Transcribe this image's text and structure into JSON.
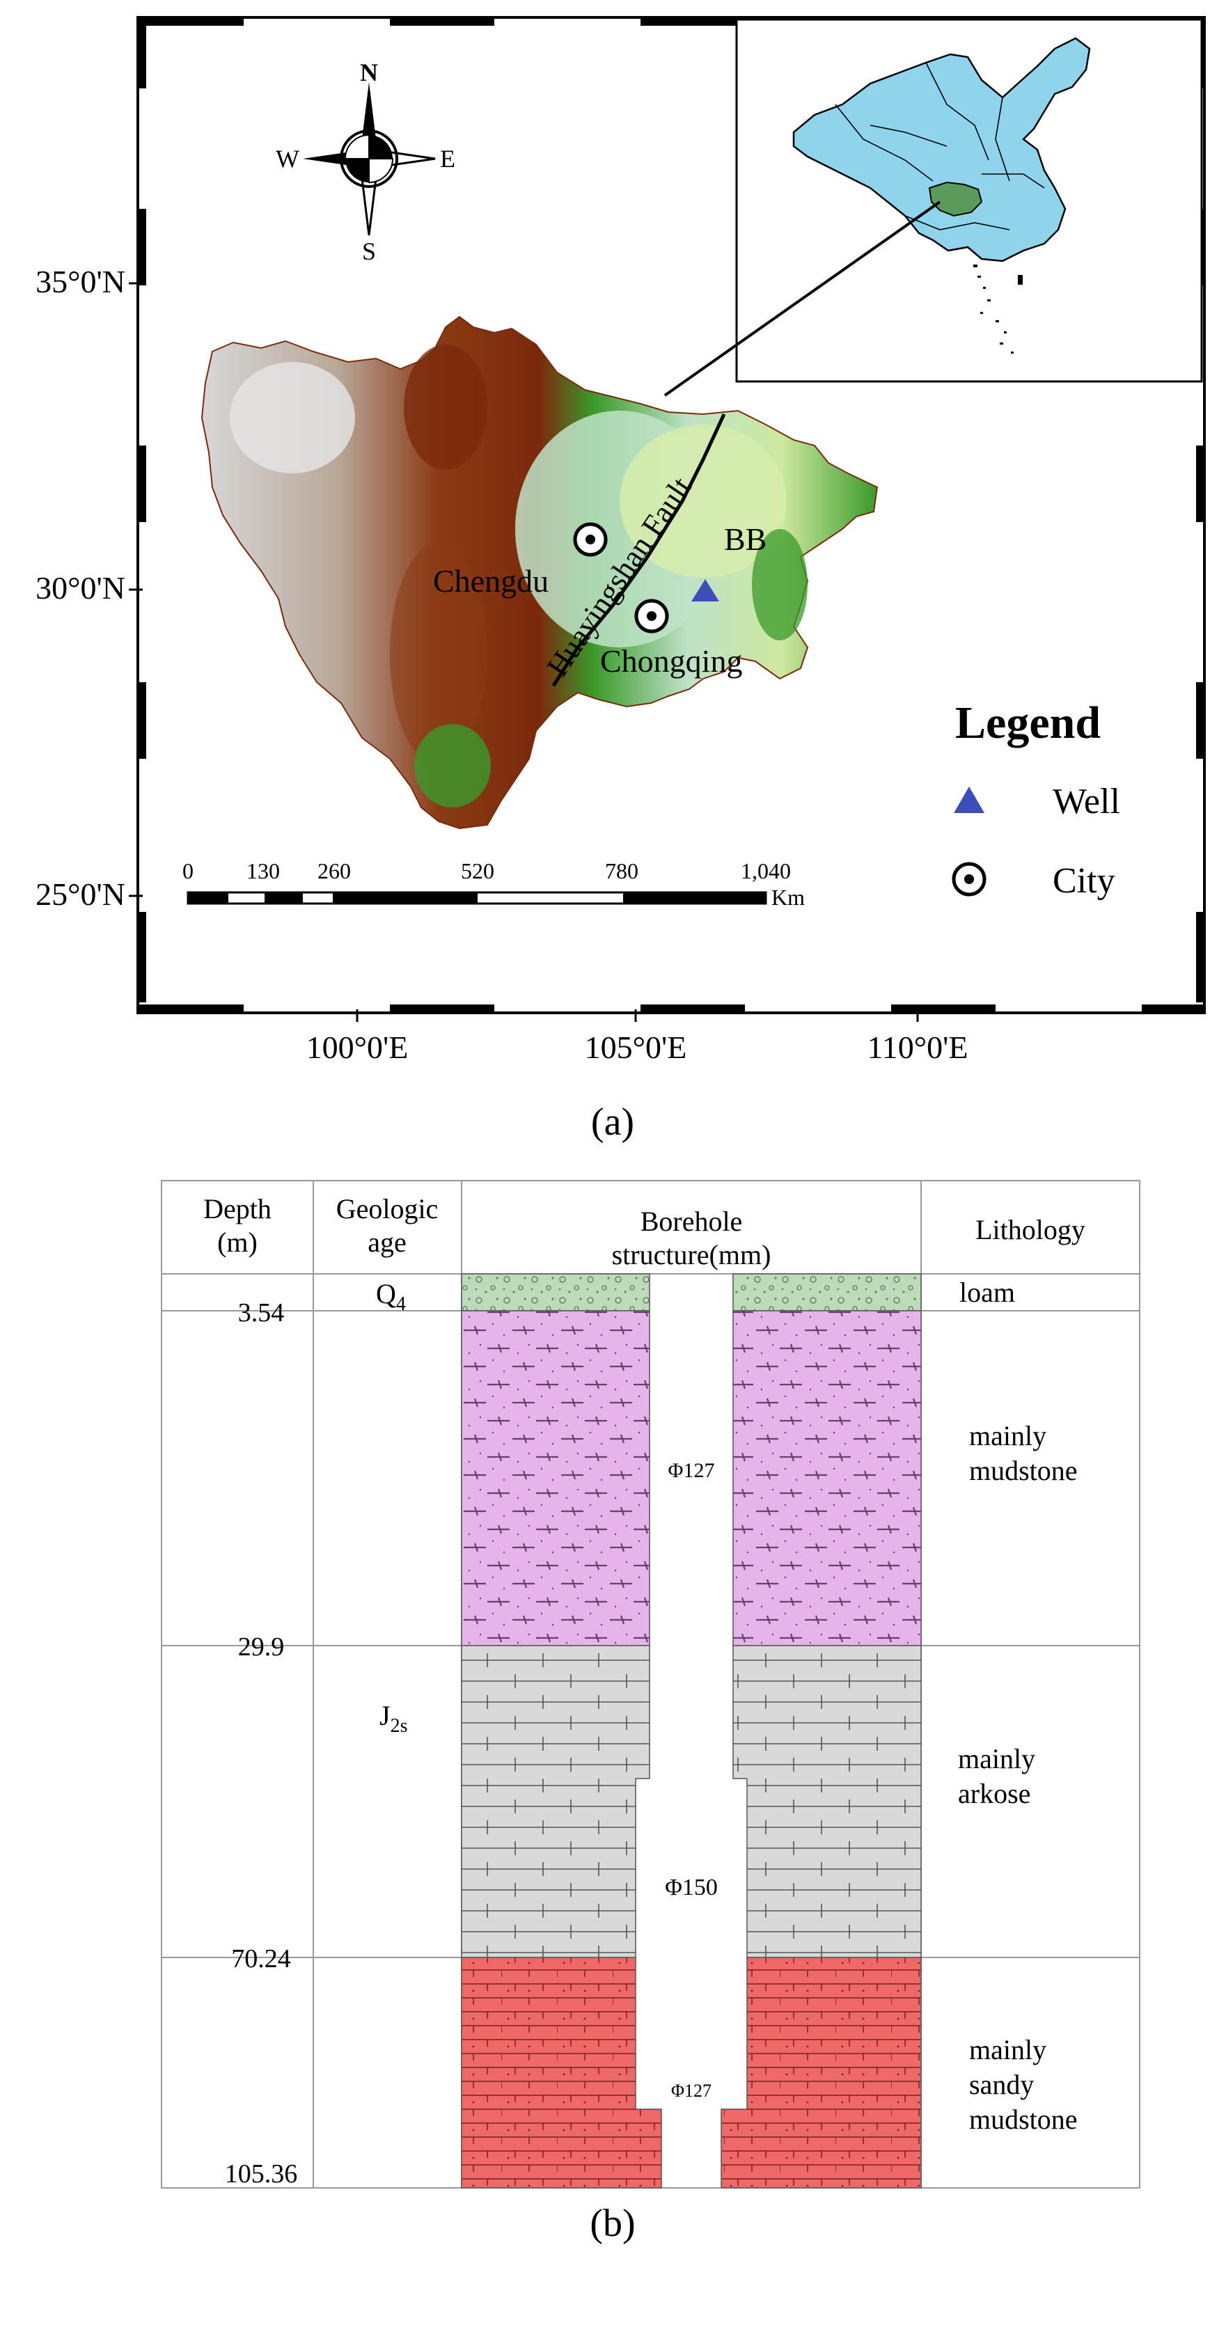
{
  "panel_a": {
    "caption": "(a)",
    "lat_labels": [
      "35°0'N",
      "30°0'N",
      "25°0'N"
    ],
    "lon_labels": [
      "100°0'E",
      "105°0'E",
      "110°0'E"
    ],
    "compass": {
      "n": "N",
      "s": "S",
      "e": "E",
      "w": "W"
    },
    "places": {
      "fault": "Huayingshan Fault",
      "city1": "Chengdu",
      "city2": "Chongqing",
      "well": "BB"
    },
    "scale_bar": {
      "ticks": [
        "0",
        "130",
        "260",
        "520",
        "780",
        "1,040"
      ],
      "unit": "Km"
    },
    "legend": {
      "title": "Legend",
      "items": [
        {
          "symbol": "triangle",
          "label": "Well",
          "color": "#3c4eb8"
        },
        {
          "symbol": "circle-dot",
          "label": "City"
        }
      ]
    },
    "colors": {
      "inset_country": "#8fd3ec",
      "inset_region": "#5a9a5a",
      "relief_high": "#7a2a0c",
      "relief_mid": "#3a9a2a",
      "relief_low": "#bfe3c8",
      "relief_snow": "#d8d8d8"
    }
  },
  "panel_b": {
    "caption": "(b)",
    "headers": {
      "depth": [
        "Depth",
        "(m)"
      ],
      "age": [
        "Geologic",
        "age"
      ],
      "structure": [
        "Borehole",
        "structure(mm)"
      ],
      "lithology": "Lithology"
    },
    "depths": [
      "3.54",
      "29.9",
      "70.24",
      "105.36"
    ],
    "ages": {
      "q": "Q",
      "q_sub": "4",
      "j": "J",
      "j_sub": "2s"
    },
    "diameters": [
      "Φ127",
      "Φ150",
      "Φ127"
    ],
    "layers": [
      {
        "name": "loam",
        "lines": [
          "loam"
        ],
        "color": "#bcdcb8"
      },
      {
        "name": "mudstone",
        "lines": [
          "mainly",
          "mudstone"
        ],
        "color": "#e4b4ea"
      },
      {
        "name": "arkose",
        "lines": [
          "mainly",
          "arkose"
        ],
        "color": "#d9d9d9"
      },
      {
        "name": "sandy-mudstone",
        "lines": [
          "mainly",
          "sandy",
          "mudstone"
        ],
        "color": "#ee6868"
      }
    ]
  }
}
